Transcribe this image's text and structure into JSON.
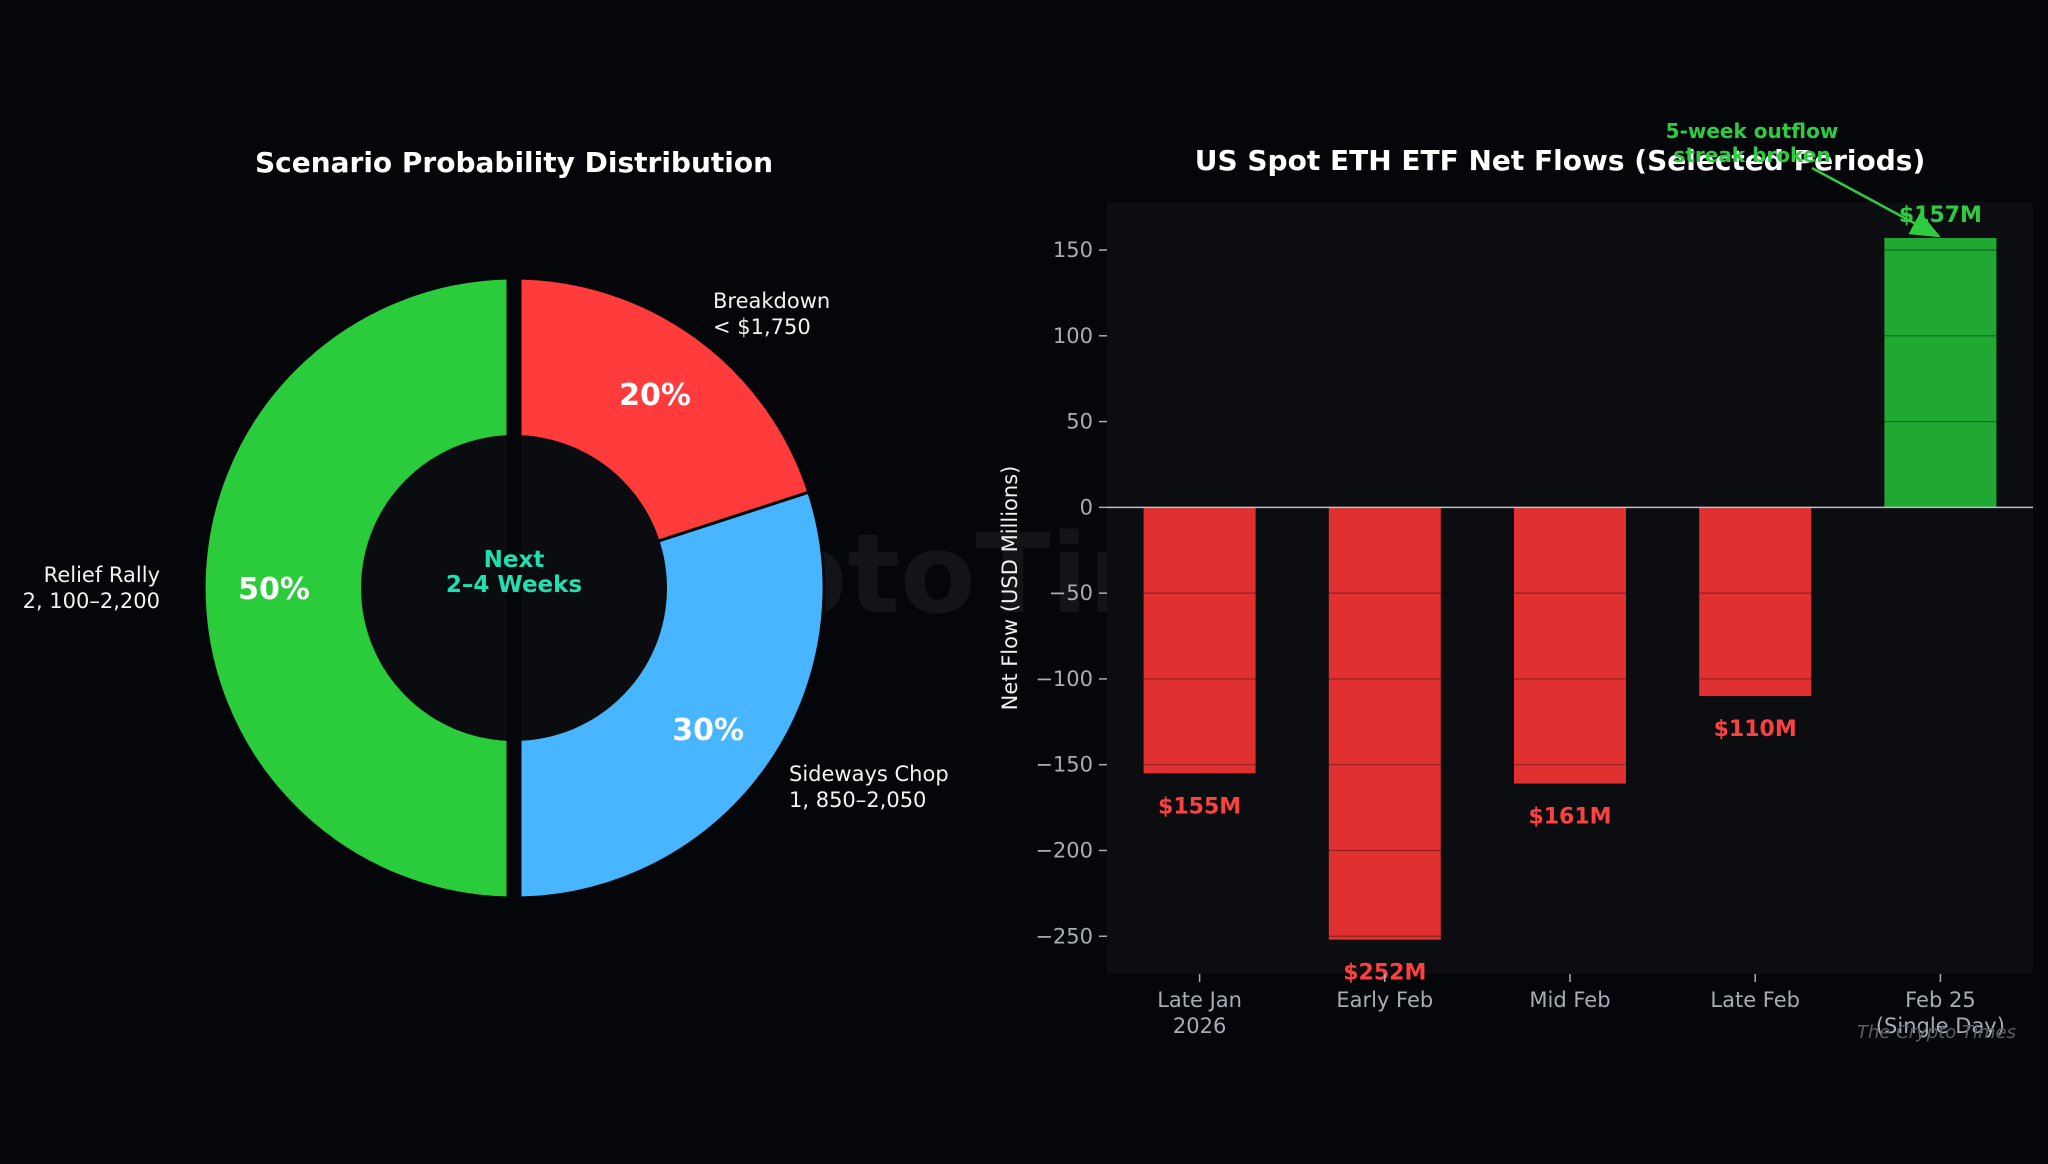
{
  "watermark": "CryptoTimes.io",
  "credit": "The Crypto Times",
  "chart_data": [
    {
      "type": "pie",
      "title": "Scenario Probability Distribution",
      "center_label": [
        "Next",
        "2–4 Weeks"
      ],
      "slices": [
        {
          "name": "Breakdown",
          "detail": "< $1,750",
          "value": 20,
          "pct_label": "20%",
          "color": "#ff3b3b"
        },
        {
          "name": "Sideways Chop",
          "detail": "1, 850–2,050",
          "value": 30,
          "pct_label": "30%",
          "color": "#47b5ff"
        },
        {
          "name": "Relief Rally",
          "detail": "2, 100–2,200",
          "value": 50,
          "pct_label": "50%",
          "color": "#2acc3c"
        }
      ],
      "start_angle": "12 o'clock",
      "direction": "clockwise"
    },
    {
      "type": "bar",
      "title": "US Spot ETH ETF Net Flows (Selected Periods)",
      "ylabel": "Net Flow (USD Millions)",
      "xlabel": "",
      "categories": [
        [
          "Late Jan",
          "2026"
        ],
        [
          "Early Feb"
        ],
        [
          "Mid Feb"
        ],
        [
          "Late Feb"
        ],
        [
          "Feb 25",
          "(Single Day)"
        ]
      ],
      "values": [
        -155,
        -252,
        -161,
        -110,
        157
      ],
      "data_labels": [
        "$155M",
        "$252M",
        "$161M",
        "$110M",
        "$157M"
      ],
      "colors": {
        "negative": "#e03030",
        "positive": "#1fa832"
      },
      "ylim": [
        -272,
        178
      ],
      "yticks": [
        150,
        100,
        50,
        0,
        -50,
        -100,
        -150,
        -200,
        -250
      ],
      "ytick_labels": [
        "150",
        "100",
        "50",
        "0",
        "−50",
        "−100",
        "−150",
        "−200",
        "−250"
      ],
      "grid": "horizontal lines inside bars",
      "annotation": {
        "text": [
          "5-week outflow",
          "streak broken"
        ],
        "target_index": 4
      }
    }
  ]
}
